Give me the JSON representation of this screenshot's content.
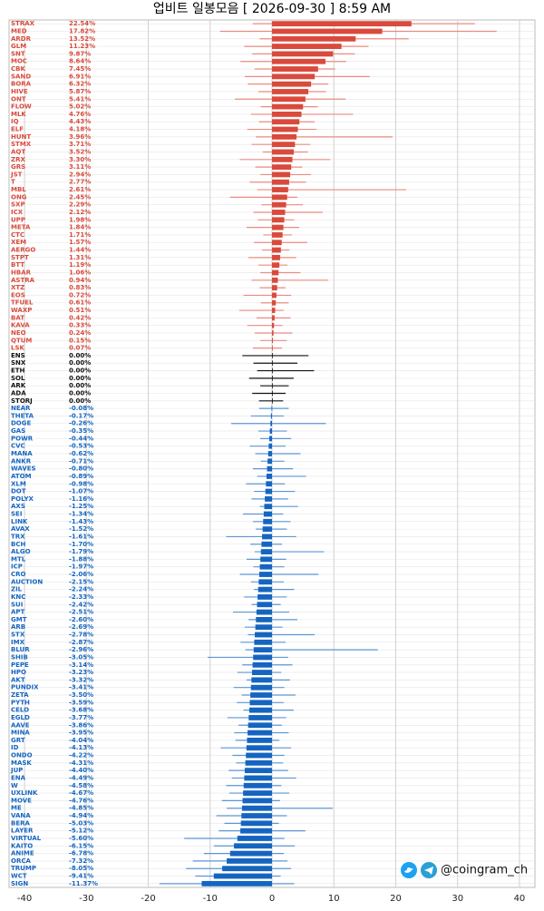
{
  "chart_data": {
    "type": "candlestick",
    "title": "업비트 일봉모음 [ 2026-09-30 ]  8:59 AM",
    "watermark": "@coingram_ch",
    "categories": [
      "STRAX",
      "MED",
      "ARDR",
      "GLM",
      "SNT",
      "MOC",
      "CBK",
      "SAND",
      "BORA",
      "HIVE",
      "ONT",
      "FLOW",
      "MLK",
      "IQ",
      "ELF",
      "HUNT",
      "STMX",
      "AQT",
      "ZRX",
      "GRS",
      "JST",
      "T",
      "MBL",
      "ONG",
      "SXP",
      "ICX",
      "UPP",
      "META",
      "CTC",
      "XEM",
      "AERGO",
      "STPT",
      "BTT",
      "HBAR",
      "ASTRA",
      "XTZ",
      "EOS",
      "TFUEL",
      "WAXP",
      "BAT",
      "KAVA",
      "NEO",
      "QTUM",
      "LSK",
      "ENS",
      "SNX",
      "ETH",
      "SOL",
      "ARK",
      "ADA",
      "STORJ",
      "NEAR",
      "THETA",
      "DOGE",
      "GAS",
      "POWR",
      "CVC",
      "MANA",
      "ANKR",
      "WAVES",
      "ATOM",
      "XLM",
      "DOT",
      "POLYX",
      "AXS",
      "SEI",
      "LINK",
      "AVAX",
      "TRX",
      "BCH",
      "ALGO",
      "MTL",
      "ICP",
      "CRO",
      "AUCTION",
      "ZIL",
      "KNC",
      "SUI",
      "APT",
      "GMT",
      "ARB",
      "STX",
      "IMX",
      "BLUR",
      "SHIB",
      "PEPE",
      "HPO",
      "AKT",
      "PUNDIX",
      "ZETA",
      "PYTH",
      "CELO",
      "EGLD",
      "AAVE",
      "MINA",
      "GRT",
      "ID",
      "ONDO",
      "MASK",
      "JUP",
      "ENA",
      "W",
      "UXLINK",
      "MOVE",
      "ME",
      "VANA",
      "BERA",
      "LAYER",
      "VIRTUAL",
      "KAITO",
      "ANIME",
      "ORCA",
      "TRUMP",
      "WCT",
      "SIGN"
    ],
    "values": [
      22.54,
      17.82,
      13.52,
      11.23,
      9.87,
      8.64,
      7.45,
      6.91,
      6.32,
      5.87,
      5.41,
      5.02,
      4.76,
      4.43,
      4.18,
      3.96,
      3.71,
      3.52,
      3.3,
      3.11,
      2.94,
      2.77,
      2.61,
      2.45,
      2.29,
      2.12,
      1.98,
      1.84,
      1.71,
      1.57,
      1.44,
      1.31,
      1.19,
      1.06,
      0.94,
      0.83,
      0.72,
      0.61,
      0.51,
      0.42,
      0.33,
      0.24,
      0.15,
      0.07,
      0,
      0,
      0,
      0,
      0,
      0,
      0,
      -0.08,
      -0.17,
      -0.26,
      -0.35,
      -0.44,
      -0.53,
      -0.62,
      -0.71,
      -0.8,
      -0.89,
      -0.98,
      -1.07,
      -1.16,
      -1.25,
      -1.34,
      -1.43,
      -1.52,
      -1.61,
      -1.7,
      -1.79,
      -1.88,
      -1.97,
      -2.06,
      -2.15,
      -2.24,
      -2.33,
      -2.42,
      -2.51,
      -2.6,
      -2.69,
      -2.78,
      -2.87,
      -2.96,
      -3.05,
      -3.14,
      -3.23,
      -3.32,
      -3.41,
      -3.5,
      -3.59,
      -3.68,
      -3.77,
      -3.86,
      -3.95,
      -4.04,
      -4.13,
      -4.22,
      -4.31,
      -4.4,
      -4.49,
      -4.58,
      -4.67,
      -4.76,
      -4.85,
      -4.94,
      -5.03,
      -5.12,
      -5.6,
      -6.15,
      -6.78,
      -7.32,
      -8.05,
      -9.41,
      -11.37
    ],
    "value_labels": [
      "22.54%",
      "17.82%",
      "13.52%",
      "11.23%",
      "9.87%",
      "8.64%",
      "7.45%",
      "6.91%",
      "6.32%",
      "5.87%",
      "5.41%",
      "5.02%",
      "4.76%",
      "4.43%",
      "4.18%",
      "3.96%",
      "3.71%",
      "3.52%",
      "3.30%",
      "3.11%",
      "2.94%",
      "2.77%",
      "2.61%",
      "2.45%",
      "2.29%",
      "2.12%",
      "1.98%",
      "1.84%",
      "1.71%",
      "1.57%",
      "1.44%",
      "1.31%",
      "1.19%",
      "1.06%",
      "0.94%",
      "0.83%",
      "0.72%",
      "0.61%",
      "0.51%",
      "0.42%",
      "0.33%",
      "0.24%",
      "0.15%",
      "0.07%",
      "0.00%",
      "0.00%",
      "0.00%",
      "0.00%",
      "0.00%",
      "0.00%",
      "0.00%",
      "-0.08%",
      "-0.17%",
      "-0.26%",
      "-0.35%",
      "-0.44%",
      "-0.53%",
      "-0.62%",
      "-0.71%",
      "-0.80%",
      "-0.89%",
      "-0.98%",
      "-1.07%",
      "-1.16%",
      "-1.25%",
      "-1.34%",
      "-1.43%",
      "-1.52%",
      "-1.61%",
      "-1.70%",
      "-1.79%",
      "-1.88%",
      "-1.97%",
      "-2.06%",
      "-2.15%",
      "-2.24%",
      "-2.33%",
      "-2.42%",
      "-2.51%",
      "-2.60%",
      "-2.69%",
      "-2.78%",
      "-2.87%",
      "-2.96%",
      "-3.05%",
      "-3.14%",
      "-3.23%",
      "-3.32%",
      "-3.41%",
      "-3.50%",
      "-3.59%",
      "-3.68%",
      "-3.77%",
      "-3.86%",
      "-3.95%",
      "-4.04%",
      "-4.13%",
      "-4.22%",
      "-4.31%",
      "-4.40%",
      "-4.49%",
      "-4.58%",
      "-4.67%",
      "-4.76%",
      "-4.85%",
      "-4.94%",
      "-5.03%",
      "-5.12%",
      "-5.60%",
      "-6.15%",
      "-6.78%",
      "-7.32%",
      "-8.05%",
      "-9.41%",
      "-11.37%"
    ],
    "low": [
      -3.1,
      -8.4,
      -2.0,
      -4.5,
      -3.2,
      -5.1,
      -2.8,
      -4.4,
      -3.9,
      -2.2,
      -6.0,
      -1.8,
      -3.4,
      -2.1,
      -4.0,
      -2.6,
      -3.3,
      -1.5,
      -5.2,
      -2.7,
      -1.9,
      -3.6,
      -2.4,
      -6.8,
      -1.7,
      -3.0,
      -2.3,
      -4.1,
      -1.4,
      -2.9,
      -1.6,
      -3.8,
      -2.2,
      -1.9,
      -3.3,
      -2.0,
      -4.6,
      -1.8,
      -5.3,
      -2.5,
      -4.0,
      -2.8,
      -1.9,
      -3.1,
      -4.8,
      -3.0,
      -2.4,
      -3.7,
      -1.9,
      -3.2,
      -2.1,
      -2.1,
      -3.4,
      -6.6,
      -2.2,
      -1.9,
      -3.6,
      -2.7,
      -1.8,
      -3.1,
      -2.4,
      -4.2,
      -2.9,
      -3.3,
      -2.0,
      -4.7,
      -3.1,
      -2.6,
      -7.4,
      -3.5,
      -2.8,
      -4.1,
      -3.0,
      -5.2,
      -3.4,
      -2.9,
      -4.5,
      -3.3,
      -6.3,
      -3.8,
      -4.4,
      -3.9,
      -5.1,
      -4.3,
      -10.4,
      -4.8,
      -5.6,
      -4.1,
      -6.2,
      -4.9,
      -5.7,
      -4.6,
      -7.2,
      -5.4,
      -6.1,
      -5.9,
      -8.3,
      -6.4,
      -5.8,
      -7.0,
      -6.5,
      -7.4,
      -6.9,
      -8.1,
      -7.3,
      -9.0,
      -7.7,
      -8.6,
      -14.2,
      -9.4,
      -11.0,
      -12.8,
      -13.9,
      -12.4,
      -18.2
    ],
    "high": [
      32.8,
      36.3,
      22.1,
      15.6,
      13.4,
      12.0,
      10.2,
      15.8,
      9.1,
      8.7,
      11.9,
      7.4,
      13.1,
      6.9,
      7.2,
      19.5,
      6.2,
      5.8,
      9.4,
      4.9,
      6.3,
      5.5,
      21.7,
      4.1,
      5.0,
      8.2,
      3.6,
      4.4,
      3.2,
      5.7,
      2.8,
      3.9,
      2.5,
      4.6,
      9.1,
      2.2,
      3.1,
      2.7,
      1.9,
      3.0,
      1.7,
      3.3,
      2.4,
      1.6,
      5.9,
      4.1,
      6.8,
      3.5,
      2.7,
      2.2,
      1.8,
      2.7,
      1.9,
      8.7,
      2.4,
      3.1,
      2.2,
      4.6,
      2.0,
      3.4,
      5.5,
      2.1,
      3.7,
      2.6,
      4.2,
      1.8,
      3.0,
      2.4,
      3.9,
      1.6,
      8.4,
      2.3,
      2.0,
      7.5,
      1.9,
      3.6,
      2.4,
      1.4,
      2.8,
      4.1,
      1.7,
      6.9,
      2.2,
      17.1,
      2.6,
      3.3,
      1.5,
      2.9,
      2.0,
      3.8,
      1.9,
      3.5,
      2.3,
      1.6,
      2.7,
      1.2,
      3.1,
      2.0,
      1.8,
      2.6,
      3.9,
      1.5,
      2.8,
      1.3,
      9.8,
      2.4,
      1.1,
      5.4,
      2.0,
      3.7,
      1.9,
      2.5,
      3.1,
      1.4,
      3.6
    ],
    "up_color": "#d94a3c",
    "up_wick_color": "#e98b82",
    "flat_color": "#111111",
    "down_color": "#1565c0",
    "down_wick_color": "#5c95d6",
    "xlim": [
      -42.5,
      42.5
    ],
    "xticks": [
      -40,
      -30,
      -20,
      -10,
      0,
      10,
      20,
      30,
      40
    ],
    "grid": true
  }
}
